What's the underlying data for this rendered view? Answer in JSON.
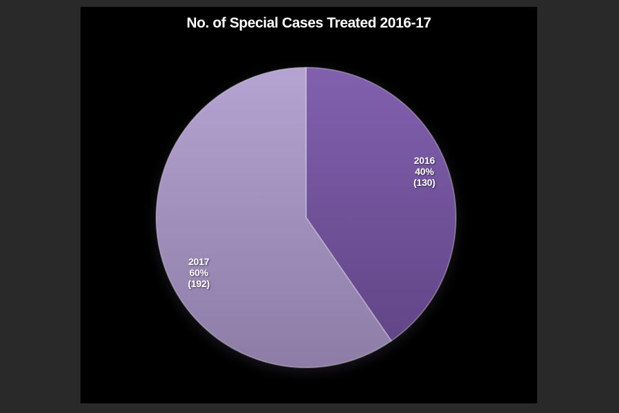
{
  "frame": {
    "background_color": "#292929",
    "slide_background_color": "#000000"
  },
  "chart_data": {
    "type": "pie",
    "title": "No. of Special Cases Treated 2016-17",
    "categories": [
      "2016",
      "2017"
    ],
    "values": [
      130,
      192
    ],
    "percent_labels": [
      "40%",
      "60%"
    ],
    "count_labels": [
      "(130)",
      "(192)"
    ],
    "start_angle_deg": 0,
    "direction": "clockwise",
    "legend_position": "none",
    "grid": false,
    "title_color": "#ffffff",
    "label_color": "#ffffff",
    "slice_edge_color": "rgba(255,255,255,0.32)",
    "slice_colors": [
      {
        "name": "purple-dark",
        "top": "#8160ae",
        "bottom": "#5e4383"
      },
      {
        "name": "purple-light",
        "top": "#b5a3d1",
        "bottom": "#8c7ca6"
      }
    ]
  }
}
